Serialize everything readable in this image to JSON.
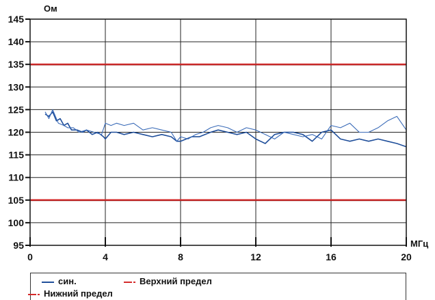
{
  "chart_data": {
    "type": "line",
    "title": "",
    "ylabel": "Ом",
    "xlabel": "МГц",
    "xlim": [
      0,
      20
    ],
    "ylim": [
      95,
      145
    ],
    "x_ticks": [
      "0",
      "4",
      "8",
      "12",
      "16",
      "20"
    ],
    "y_ticks": [
      "145",
      "140",
      "135",
      "130",
      "125",
      "120",
      "115",
      "110",
      "105",
      "100",
      "95"
    ],
    "grid": true,
    "series": [
      {
        "name": "син.",
        "color": "#1f4e9a",
        "x": [
          0.8,
          1.0,
          1.2,
          1.4,
          1.6,
          1.8,
          2.0,
          2.2,
          2.5,
          2.8,
          3.0,
          3.3,
          3.6,
          3.9,
          4.0,
          4.3,
          4.6,
          5.0,
          5.5,
          6.0,
          6.5,
          7.0,
          7.5,
          7.8,
          8.0,
          8.3,
          8.6,
          9.0,
          9.3,
          9.6,
          10.0,
          10.5,
          11.0,
          11.5,
          12.0,
          12.5,
          13.0,
          13.5,
          14.0,
          14.5,
          15.0,
          15.5,
          16.0,
          16.5,
          17.0,
          17.5,
          18.0,
          18.5,
          19.0,
          19.5,
          20.0
        ],
        "values": [
          124,
          123.5,
          124.5,
          122.5,
          123,
          121.5,
          122,
          120.5,
          120.5,
          120,
          120.5,
          119.5,
          120,
          119,
          118.5,
          120,
          120,
          119.5,
          120,
          119.5,
          119,
          119.5,
          119,
          118,
          118,
          118.5,
          119,
          119,
          119.5,
          120,
          120.5,
          120,
          119.5,
          120,
          118.5,
          117.5,
          119.5,
          120,
          120,
          119.5,
          118,
          120,
          120.5,
          118.5,
          118,
          118.5,
          118,
          118.5,
          118,
          117.5,
          116.8
        ]
      },
      {
        "name": "",
        "color": "#3a6bb8",
        "x": [
          0.8,
          1.0,
          1.2,
          1.5,
          1.8,
          2.0,
          2.3,
          2.6,
          3.0,
          3.4,
          3.8,
          4.0,
          4.3,
          4.6,
          5.0,
          5.5,
          6.0,
          6.5,
          7.0,
          7.5,
          7.8,
          8.0,
          8.4,
          8.8,
          9.2,
          9.6,
          10.0,
          10.5,
          11.0,
          11.5,
          12.0,
          12.5,
          13.0,
          13.5,
          14.0,
          14.5,
          15.0,
          15.5,
          16.0,
          16.5,
          17.0,
          17.5,
          18.0,
          18.5,
          19.0,
          19.5,
          20.0
        ],
        "values": [
          124.5,
          123,
          125,
          122,
          121.5,
          121,
          121,
          120,
          120.5,
          120,
          119.5,
          122,
          121.5,
          122,
          121.5,
          122,
          120.5,
          121,
          120.5,
          120,
          118,
          119,
          118.5,
          119.5,
          120,
          121,
          121.5,
          121,
          120,
          121,
          120.5,
          119.5,
          118.5,
          120,
          119.5,
          119,
          119.5,
          118.5,
          121.5,
          121,
          122,
          120,
          120,
          121,
          122.5,
          123.5,
          120.5
        ]
      }
    ],
    "reference_lines": [
      {
        "name": "Верхний предел",
        "y": 135,
        "color": "#d42a2a"
      },
      {
        "name": "Нижний предел",
        "y": 105,
        "color": "#d42a2a"
      }
    ]
  },
  "legend": {
    "items": [
      {
        "label": "син.",
        "color": "#1f4e9a",
        "style": "solid"
      },
      {
        "label": "Верхний предел",
        "color": "#d42a2a",
        "style": "dash-dot"
      },
      {
        "label": "Нижний предел",
        "color": "#d42a2a",
        "style": "dash-dot"
      }
    ]
  }
}
